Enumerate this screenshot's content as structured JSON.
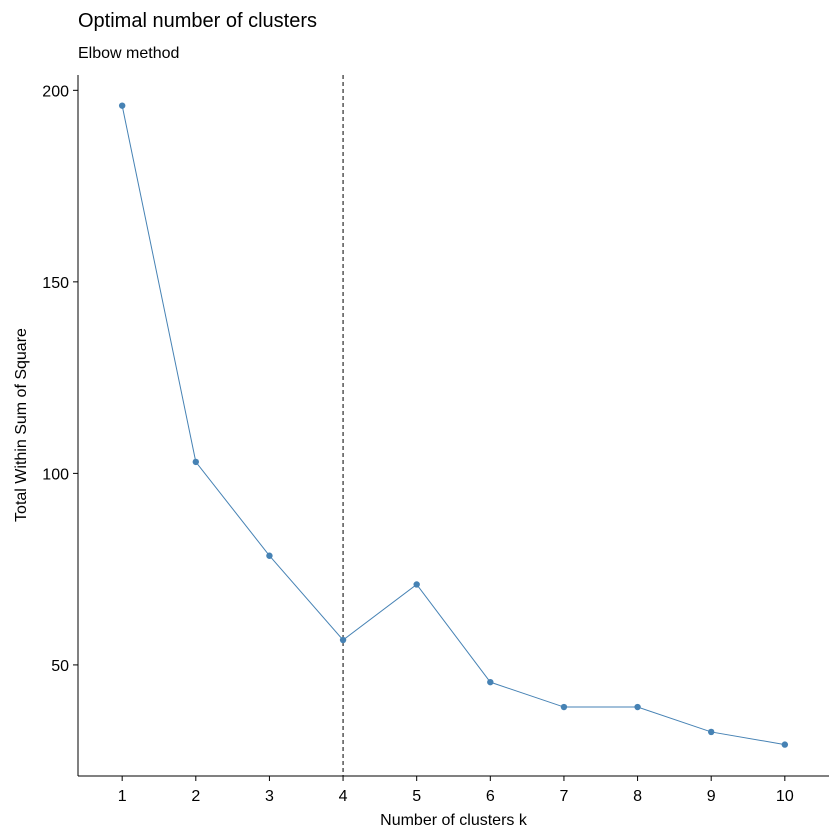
{
  "chart_data": {
    "type": "line",
    "title": "Optimal number of clusters",
    "subtitle": "Elbow method",
    "xlabel": "Number of clusters k",
    "ylabel": "Total Within Sum of Square",
    "categories": [
      "1",
      "2",
      "3",
      "4",
      "5",
      "6",
      "7",
      "8",
      "9",
      "10"
    ],
    "x": [
      1,
      2,
      3,
      4,
      5,
      6,
      7,
      8,
      9,
      10
    ],
    "series": [
      {
        "values": [
          196,
          103,
          78.5,
          56.5,
          71,
          45.5,
          39,
          39,
          32.5,
          29.2
        ],
        "color": "#4682B4"
      }
    ],
    "yticks": [
      50,
      100,
      150,
      200
    ],
    "ylim": [
      21,
      204
    ],
    "xlim": [
      0.4,
      10.6
    ],
    "vline": {
      "x": 4,
      "style": "dashed",
      "color": "#000000"
    },
    "grid": false,
    "legend": "none"
  }
}
